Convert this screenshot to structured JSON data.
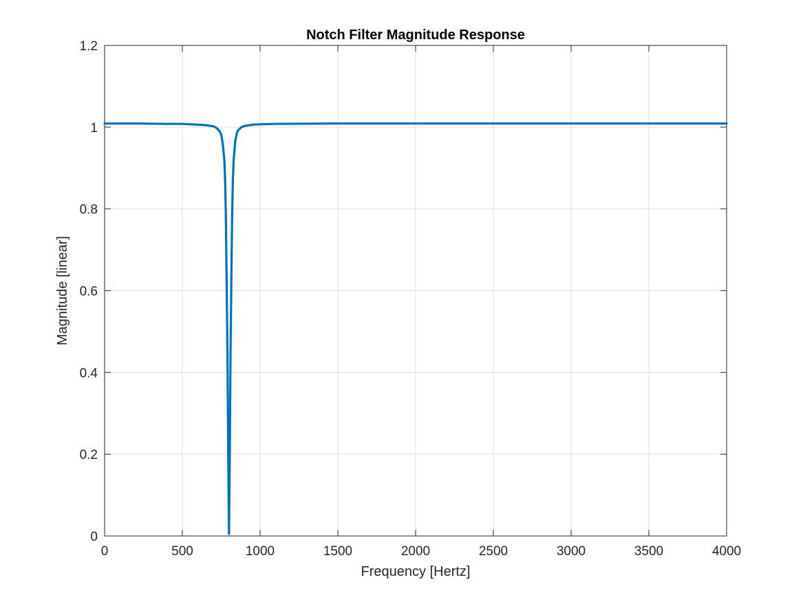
{
  "chart_data": {
    "type": "line",
    "title": "Notch Filter Magnitude Response",
    "xlabel": "Frequency [Hertz]",
    "ylabel": "Magnitude [linear]",
    "xlim": [
      0,
      4000
    ],
    "ylim": [
      0,
      1.2
    ],
    "xticks": [
      0,
      500,
      1000,
      1500,
      2000,
      2500,
      3000,
      3500,
      4000
    ],
    "xtick_labels": [
      "0",
      "500",
      "1000",
      "1500",
      "2000",
      "2500",
      "3000",
      "3500",
      "4000"
    ],
    "yticks": [
      0,
      0.2,
      0.4,
      0.6,
      0.8,
      1.0,
      1.2
    ],
    "ytick_labels": [
      "0",
      "0.2",
      "0.4",
      "0.6",
      "0.8",
      "1",
      "1.2"
    ],
    "grid": true,
    "series": [
      {
        "color": "#0072BD",
        "x": [
          0,
          200,
          400,
          500,
          600,
          650,
          700,
          720,
          740,
          750,
          760,
          770,
          775,
          780,
          785,
          790,
          795,
          800,
          805,
          810,
          815,
          820,
          825,
          830,
          840,
          850,
          860,
          880,
          900,
          950,
          1000,
          1100,
          1500,
          2000,
          2500,
          3000,
          3500,
          4000
        ],
        "y": [
          1.009,
          1.009,
          1.008,
          1.008,
          1.006,
          1.005,
          1.002,
          0.998,
          0.99,
          0.982,
          0.96,
          0.92,
          0.87,
          0.78,
          0.62,
          0.45,
          0.2,
          0.005,
          0.2,
          0.45,
          0.62,
          0.78,
          0.87,
          0.92,
          0.965,
          0.985,
          0.993,
          1.0,
          1.003,
          1.006,
          1.007,
          1.008,
          1.009,
          1.009,
          1.009,
          1.009,
          1.009,
          1.009
        ]
      }
    ]
  }
}
